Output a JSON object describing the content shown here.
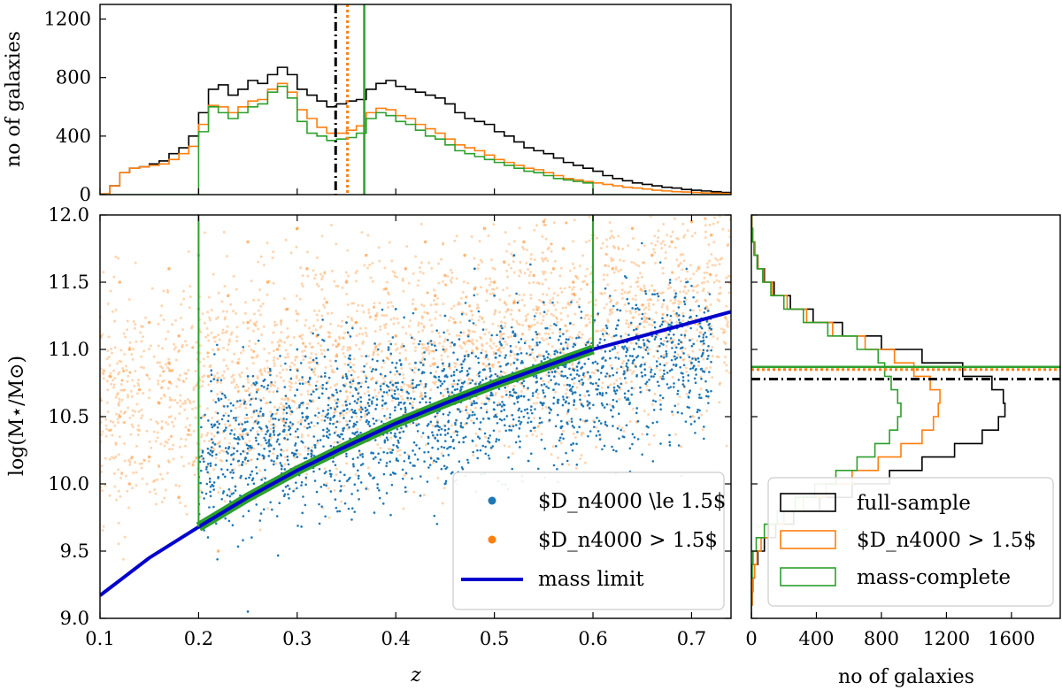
{
  "chart_data": [
    {
      "panel": "top-histogram",
      "type": "histogram",
      "ylabel": "no of galaxies",
      "xlim": [
        0.1,
        0.74
      ],
      "ylim": [
        0,
        1300
      ],
      "yticks": [
        "0",
        "400",
        "800",
        "1200"
      ],
      "bins": [
        0.1,
        0.11,
        0.12,
        0.13,
        0.14,
        0.15,
        0.16,
        0.17,
        0.18,
        0.19,
        0.2,
        0.21,
        0.22,
        0.23,
        0.24,
        0.25,
        0.26,
        0.27,
        0.28,
        0.29,
        0.3,
        0.31,
        0.32,
        0.33,
        0.34,
        0.35,
        0.36,
        0.37,
        0.38,
        0.39,
        0.4,
        0.41,
        0.42,
        0.43,
        0.44,
        0.45,
        0.46,
        0.47,
        0.48,
        0.49,
        0.5,
        0.51,
        0.52,
        0.53,
        0.54,
        0.55,
        0.56,
        0.57,
        0.58,
        0.59,
        0.6,
        0.61,
        0.62,
        0.63,
        0.64,
        0.65,
        0.66,
        0.67,
        0.68,
        0.69,
        0.7,
        0.71,
        0.72,
        0.73,
        0.74
      ],
      "series": [
        {
          "name": "full-sample",
          "color": "#000000",
          "counts": [
            5,
            60,
            150,
            180,
            190,
            210,
            230,
            280,
            320,
            400,
            560,
            720,
            750,
            680,
            720,
            780,
            760,
            820,
            870,
            820,
            720,
            680,
            640,
            600,
            620,
            640,
            650,
            720,
            760,
            780,
            740,
            720,
            700,
            680,
            660,
            620,
            560,
            520,
            500,
            480,
            430,
            400,
            360,
            320,
            300,
            280,
            250,
            220,
            200,
            180,
            160,
            130,
            110,
            95,
            80,
            70,
            60,
            50,
            45,
            35,
            30,
            25,
            20,
            15
          ]
        },
        {
          "name": "Dn4000 > 1.5",
          "color": "#ff7f0e",
          "counts": [
            5,
            60,
            150,
            180,
            190,
            200,
            210,
            240,
            280,
            330,
            480,
            610,
            600,
            560,
            600,
            640,
            650,
            720,
            760,
            700,
            580,
            520,
            460,
            420,
            420,
            440,
            470,
            560,
            590,
            580,
            540,
            520,
            480,
            450,
            420,
            380,
            340,
            320,
            300,
            270,
            240,
            220,
            200,
            180,
            170,
            150,
            130,
            110,
            100,
            90,
            80,
            70,
            60,
            50,
            45,
            38,
            30,
            25,
            20,
            18,
            15,
            12,
            10,
            8
          ]
        },
        {
          "name": "mass-complete",
          "color": "#2ca02c",
          "counts": [
            0,
            0,
            0,
            0,
            0,
            0,
            0,
            0,
            0,
            0,
            430,
            600,
            560,
            520,
            560,
            600,
            620,
            700,
            740,
            660,
            500,
            420,
            400,
            370,
            380,
            390,
            420,
            520,
            560,
            540,
            500,
            480,
            440,
            400,
            380,
            340,
            300,
            280,
            260,
            240,
            220,
            200,
            180,
            160,
            150,
            130,
            110,
            100,
            90,
            80,
            0,
            0,
            0,
            0,
            0,
            0,
            0,
            0,
            0,
            0,
            0,
            0,
            0,
            0
          ]
        }
      ],
      "medians": [
        {
          "series": "full-sample",
          "value": 0.339,
          "style": "dash-dot",
          "color": "#000000"
        },
        {
          "series": "Dn4000 > 1.5",
          "value": 0.351,
          "style": "dotted",
          "color": "#ff7f0e"
        },
        {
          "series": "mass-complete",
          "value": 0.368,
          "style": "solid",
          "color": "#2ca02c"
        }
      ]
    },
    {
      "panel": "main-scatter",
      "type": "scatter",
      "xlabel": "z",
      "ylabel": "log(M⋆/M⊙)",
      "xlim": [
        0.1,
        0.74
      ],
      "ylim": [
        9.0,
        12.0
      ],
      "xticks": [
        "0.1",
        "0.2",
        "0.3",
        "0.4",
        "0.5",
        "0.6",
        "0.7"
      ],
      "yticks": [
        "9.0",
        "9.5",
        "10.0",
        "10.5",
        "11.0",
        "11.5",
        "12.0"
      ],
      "series": [
        {
          "name": "Dn4000 ≤ 1.5",
          "color": "#1f77b4",
          "points": [
            [
              0.22,
              10.05
            ],
            [
              0.24,
              10.3
            ],
            [
              0.26,
              10.45
            ],
            [
              0.28,
              10.55
            ],
            [
              0.3,
              10.7
            ],
            [
              0.31,
              10.5
            ],
            [
              0.32,
              10.9
            ],
            [
              0.33,
              10.75
            ],
            [
              0.34,
              10.6
            ],
            [
              0.35,
              10.8
            ],
            [
              0.36,
              10.7
            ],
            [
              0.37,
              10.95
            ],
            [
              0.38,
              10.85
            ],
            [
              0.39,
              10.6
            ],
            [
              0.4,
              10.75
            ],
            [
              0.41,
              10.55
            ],
            [
              0.42,
              10.9
            ],
            [
              0.43,
              10.65
            ],
            [
              0.44,
              10.5
            ],
            [
              0.45,
              10.8
            ],
            [
              0.46,
              10.7
            ],
            [
              0.47,
              10.95
            ],
            [
              0.48,
              10.6
            ],
            [
              0.49,
              10.85
            ],
            [
              0.5,
              10.75
            ],
            [
              0.51,
              10.55
            ],
            [
              0.52,
              10.9
            ],
            [
              0.53,
              10.65
            ],
            [
              0.54,
              10.8
            ],
            [
              0.55,
              10.95
            ],
            [
              0.56,
              10.7
            ],
            [
              0.57,
              11.0
            ],
            [
              0.58,
              10.85
            ],
            [
              0.59,
              10.75
            ],
            [
              0.6,
              10.9
            ],
            [
              0.62,
              11.0
            ],
            [
              0.64,
              10.95
            ],
            [
              0.66,
              11.1
            ],
            [
              0.68,
              11.05
            ],
            [
              0.7,
              11.2
            ],
            [
              0.72,
              11.15
            ],
            [
              0.35,
              11.2
            ],
            [
              0.4,
              11.3
            ],
            [
              0.45,
              11.25
            ],
            [
              0.5,
              11.4
            ],
            [
              0.55,
              11.35
            ],
            [
              0.3,
              11.0
            ],
            [
              0.25,
              10.8
            ],
            [
              0.6,
              11.5
            ],
            [
              0.45,
              10.4
            ],
            [
              0.5,
              10.5
            ],
            [
              0.55,
              10.6
            ],
            [
              0.4,
              10.35
            ],
            [
              0.35,
              10.25
            ],
            [
              0.3,
              10.2
            ],
            [
              0.65,
              10.8
            ],
            [
              0.68,
              10.85
            ],
            [
              0.5,
              9.9
            ],
            [
              0.55,
              9.8
            ],
            [
              0.45,
              10.0
            ],
            [
              0.62,
              10.5
            ],
            [
              0.58,
              10.3
            ],
            [
              0.25,
              9.05
            ],
            [
              0.7,
              10.9
            ],
            [
              0.48,
              11.6
            ],
            [
              0.52,
              11.7
            ]
          ]
        },
        {
          "name": "Dn4000 > 1.5",
          "color": "#ff7f0e",
          "points": [
            [
              0.11,
              10.8
            ],
            [
              0.12,
              10.5
            ],
            [
              0.13,
              11.0
            ],
            [
              0.14,
              10.7
            ],
            [
              0.15,
              11.2
            ],
            [
              0.16,
              10.6
            ],
            [
              0.17,
              10.9
            ],
            [
              0.18,
              11.1
            ],
            [
              0.19,
              10.4
            ],
            [
              0.2,
              11.3
            ],
            [
              0.21,
              10.8
            ],
            [
              0.22,
              11.0
            ],
            [
              0.23,
              11.4
            ],
            [
              0.24,
              10.9
            ],
            [
              0.25,
              11.2
            ],
            [
              0.26,
              10.7
            ],
            [
              0.27,
              11.5
            ],
            [
              0.28,
              11.0
            ],
            [
              0.29,
              11.3
            ],
            [
              0.3,
              10.85
            ],
            [
              0.31,
              11.6
            ],
            [
              0.32,
              11.1
            ],
            [
              0.33,
              11.35
            ],
            [
              0.34,
              10.95
            ],
            [
              0.35,
              11.5
            ],
            [
              0.36,
              11.2
            ],
            [
              0.37,
              11.7
            ],
            [
              0.38,
              11.25
            ],
            [
              0.39,
              11.45
            ],
            [
              0.4,
              11.1
            ],
            [
              0.41,
              11.6
            ],
            [
              0.42,
              11.3
            ],
            [
              0.43,
              11.8
            ],
            [
              0.44,
              11.4
            ],
            [
              0.45,
              11.55
            ],
            [
              0.46,
              11.2
            ],
            [
              0.47,
              11.7
            ],
            [
              0.48,
              11.45
            ],
            [
              0.49,
              11.9
            ],
            [
              0.5,
              11.5
            ],
            [
              0.51,
              11.65
            ],
            [
              0.52,
              11.35
            ],
            [
              0.53,
              11.8
            ],
            [
              0.54,
              11.55
            ],
            [
              0.55,
              11.95
            ],
            [
              0.56,
              11.6
            ],
            [
              0.57,
              11.75
            ],
            [
              0.58,
              11.5
            ],
            [
              0.6,
              11.85
            ],
            [
              0.62,
              11.6
            ],
            [
              0.64,
              11.9
            ],
            [
              0.66,
              11.7
            ],
            [
              0.68,
              11.8
            ],
            [
              0.7,
              11.95
            ],
            [
              0.72,
              11.85
            ],
            [
              0.15,
              10.2
            ],
            [
              0.13,
              10.0
            ],
            [
              0.18,
              9.9
            ],
            [
              0.22,
              9.5
            ],
            [
              0.12,
              11.5
            ],
            [
              0.17,
              11.6
            ],
            [
              0.2,
              11.7
            ],
            [
              0.25,
              11.8
            ],
            [
              0.3,
              11.9
            ],
            [
              0.1,
              11.1
            ]
          ]
        }
      ],
      "mass_limit": {
        "name": "mass limit",
        "color": "#0000cc",
        "x": [
          0.1,
          0.15,
          0.2,
          0.25,
          0.3,
          0.35,
          0.4,
          0.45,
          0.5,
          0.55,
          0.6,
          0.65,
          0.7,
          0.74
        ],
        "y": [
          9.17,
          9.45,
          9.68,
          9.9,
          10.1,
          10.28,
          10.45,
          10.6,
          10.74,
          10.87,
          11.0,
          11.1,
          11.2,
          11.28
        ]
      },
      "selection_box": {
        "name": "mass-complete",
        "color": "#2ca02c",
        "z_min": 0.2,
        "z_max": 0.6
      },
      "legend": {
        "position": "lower-right",
        "entries": [
          "$D_n4000 \\le 1.5$",
          "$D_n4000 > 1.5$",
          "mass limit"
        ]
      }
    },
    {
      "panel": "right-histogram",
      "type": "histogram",
      "orientation": "horizontal",
      "xlabel": "no of galaxies",
      "xlim": [
        0,
        1900
      ],
      "ylim": [
        9.0,
        12.0
      ],
      "xticks": [
        "0",
        "400",
        "800",
        "1200",
        "1600"
      ],
      "bins": [
        9.0,
        9.1,
        9.2,
        9.3,
        9.4,
        9.5,
        9.6,
        9.7,
        9.8,
        9.9,
        10.0,
        10.1,
        10.2,
        10.3,
        10.4,
        10.5,
        10.6,
        10.7,
        10.8,
        10.9,
        11.0,
        11.1,
        11.2,
        11.3,
        11.4,
        11.5,
        11.6,
        11.7,
        11.8,
        11.9,
        12.0
      ],
      "series": [
        {
          "name": "full-sample",
          "color": "#000000",
          "counts": [
            0,
            5,
            10,
            20,
            40,
            80,
            150,
            260,
            420,
            620,
            850,
            1050,
            1250,
            1420,
            1520,
            1560,
            1550,
            1480,
            1300,
            1050,
            800,
            560,
            380,
            240,
            140,
            80,
            40,
            20,
            8,
            3
          ]
        },
        {
          "name": "Dn4000 > 1.5",
          "color": "#ff7f0e",
          "counts": [
            0,
            5,
            10,
            20,
            35,
            60,
            110,
            200,
            320,
            460,
            620,
            780,
            920,
            1050,
            1120,
            1150,
            1160,
            1100,
            1000,
            880,
            700,
            500,
            340,
            220,
            130,
            75,
            38,
            18,
            8,
            3
          ]
        },
        {
          "name": "mass-complete",
          "color": "#2ca02c",
          "counts": [
            0,
            0,
            0,
            5,
            10,
            30,
            80,
            160,
            270,
            390,
            520,
            650,
            760,
            850,
            900,
            920,
            900,
            860,
            820,
            780,
            650,
            470,
            320,
            200,
            120,
            70,
            35,
            16,
            6,
            2
          ]
        }
      ],
      "medians": [
        {
          "series": "full-sample",
          "value": 10.78,
          "style": "dash-dot",
          "color": "#000000"
        },
        {
          "series": "Dn4000 > 1.5",
          "value": 10.85,
          "style": "dotted",
          "color": "#ff7f0e"
        },
        {
          "series": "mass-complete",
          "value": 10.87,
          "style": "solid",
          "color": "#2ca02c"
        }
      ],
      "legend": {
        "position": "lower-right",
        "entries": [
          "full-sample",
          "$D_n4000 > 1.5$",
          "mass-complete"
        ]
      }
    }
  ],
  "labels": {
    "top_ylabel": "no of galaxies",
    "main_xlabel": "z",
    "main_ylabel": "log(M⋆/M⊙)",
    "right_xlabel": "no of galaxies"
  }
}
